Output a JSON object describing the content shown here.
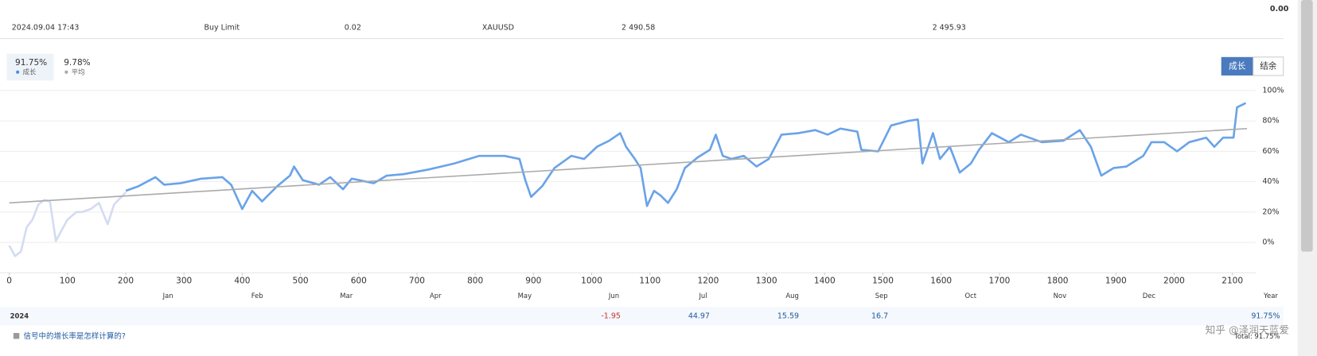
{
  "header": {
    "balance": "0.00"
  },
  "order": [
    "2024.09.04 17:43",
    "Buy Limit",
    "0.02",
    "XAUUSD",
    "2 490.58",
    "2 495.93"
  ],
  "tabs": [
    {
      "value": "91.75%",
      "label": "成长"
    },
    {
      "value": "9.78%",
      "label": "平均"
    }
  ],
  "buttons": [
    "成长",
    "结余"
  ],
  "chart_data": {
    "type": "line",
    "xlim": [
      0,
      2140
    ],
    "xticks": [
      0,
      100,
      200,
      300,
      400,
      500,
      600,
      700,
      800,
      900,
      1000,
      1100,
      1200,
      1300,
      1400,
      1500,
      1600,
      1700,
      1800,
      1900,
      2000,
      2100
    ],
    "ylim": [
      -20,
      110
    ],
    "yticks": [
      {
        "value": 0,
        "label": "0%"
      },
      {
        "value": 20,
        "label": "20%"
      },
      {
        "value": 40,
        "label": "40%"
      },
      {
        "value": 60,
        "label": "60%"
      },
      {
        "value": 80,
        "label": "80%"
      },
      {
        "value": 100,
        "label": "100%"
      }
    ],
    "grid": true,
    "series": [
      {
        "color": "#d3dcf0",
        "x": [
          0,
          10,
          20,
          30,
          40,
          50,
          60,
          70,
          80,
          90,
          100,
          115,
          125,
          140,
          154,
          169,
          180,
          200
        ],
        "values": [
          -2,
          -9,
          -6,
          10,
          15,
          25,
          28,
          27,
          1,
          8,
          15,
          20,
          20,
          22,
          26,
          12,
          25,
          33
        ]
      },
      {
        "color": "#6aa3e8",
        "x": [
          200,
          222,
          251,
          266,
          294,
          330,
          366,
          381,
          400,
          417,
          434,
          460,
          482,
          489,
          504,
          532,
          551,
          573,
          588,
          626,
          648,
          677,
          720,
          764,
          807,
          850,
          876,
          886,
          896,
          915,
          936,
          965,
          987,
          1009,
          1030,
          1049,
          1059,
          1074,
          1084,
          1095,
          1107,
          1118,
          1131,
          1146,
          1160,
          1182,
          1203,
          1213,
          1225,
          1240,
          1261,
          1283,
          1304,
          1326,
          1355,
          1384,
          1405,
          1427,
          1456,
          1463,
          1492,
          1514,
          1543,
          1560,
          1568,
          1586,
          1598,
          1615,
          1632,
          1651,
          1665,
          1687,
          1716,
          1737,
          1773,
          1810,
          1838,
          1857,
          1875,
          1896,
          1918,
          1947,
          1961,
          1983,
          2005,
          2026,
          2055,
          2069,
          2084,
          2102,
          2108,
          2123
        ],
        "values": [
          34,
          37,
          43,
          38,
          39,
          42,
          43,
          38,
          22,
          34,
          27,
          37,
          44,
          50,
          41,
          38,
          43,
          35,
          42,
          39,
          44,
          45,
          48,
          52,
          57,
          57,
          55,
          41,
          30,
          37,
          49,
          57,
          55,
          63,
          67,
          72,
          63,
          55,
          49,
          24,
          34,
          31,
          26,
          35,
          49,
          56,
          61,
          71,
          57,
          55,
          57,
          50,
          55,
          71,
          72,
          74,
          71,
          75,
          73,
          61,
          60,
          77,
          80,
          81,
          52,
          72,
          55,
          63,
          46,
          52,
          61,
          72,
          66,
          71,
          66,
          67,
          74,
          63,
          44,
          49,
          50,
          57,
          66,
          66,
          60,
          66,
          69,
          63,
          69,
          69,
          89,
          91.75
        ]
      },
      {
        "color": "#aaaaaa",
        "x": [
          0,
          2125
        ],
        "values": [
          26,
          75
        ]
      }
    ]
  },
  "table": {
    "months": [
      "Jan",
      "Feb",
      "Mar",
      "Apr",
      "May",
      "Jun",
      "Jul",
      "Aug",
      "Sep",
      "Oct",
      "Nov",
      "Dec"
    ],
    "year_label": "Year",
    "rows": [
      {
        "year": "2024",
        "values": [
          null,
          null,
          null,
          null,
          null,
          -1.95,
          44.97,
          15.59,
          16.7,
          null,
          null,
          null
        ],
        "total": "91.75%"
      }
    ]
  },
  "footer": {
    "link": "信号中的增长率是怎样计算的?",
    "total": "Total: 91.75%"
  },
  "watermark": "知乎 @泽润天蓝爱"
}
